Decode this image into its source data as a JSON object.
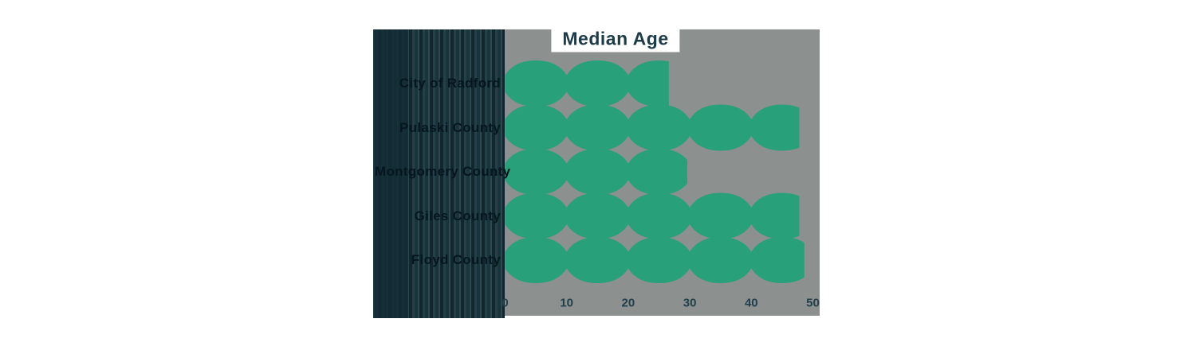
{
  "title": "Median Age",
  "chart_data": {
    "type": "bar",
    "orientation": "horizontal",
    "title": "Median Age",
    "categories": [
      "City of Radford",
      "Pulaski County",
      "Montgomery County",
      "Giles County",
      "Floyd County"
    ],
    "values": [
      26.6,
      47.8,
      29.6,
      47.8,
      48.6
    ],
    "xlabel": "",
    "ylabel": "",
    "xlim": [
      0,
      50
    ],
    "xticks": [
      0,
      10,
      20,
      30,
      40,
      50
    ],
    "xtick_labels": [
      "0",
      "10",
      "20",
      "30",
      "40",
      "50"
    ],
    "grid": false,
    "legend": false,
    "bar_style": "interlocking-diamond-zigzag",
    "colors": {
      "bar": "#28a17a",
      "panel_background": "#8c908e",
      "page_background": "#ffffff",
      "title_text": "#1d3a47",
      "tick_text": "#21404b",
      "category_text": "#05161e",
      "label_panel": "#1a343c"
    }
  }
}
